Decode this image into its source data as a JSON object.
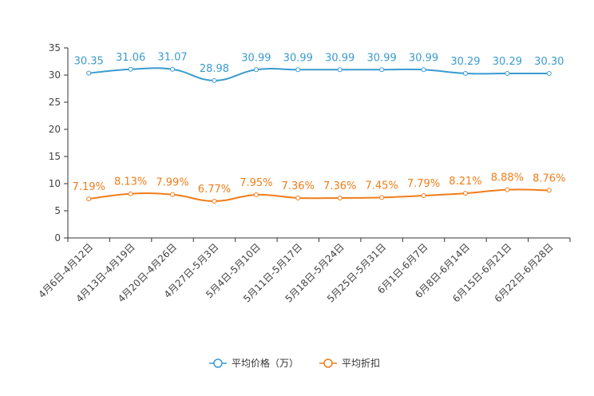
{
  "chart_data": {
    "type": "line",
    "categories": [
      "4月6日-4月12日",
      "4月13日-4月19日",
      "4月20日-4月26日",
      "4月27日-5月3日",
      "5月4日-5月10日",
      "5月11日-5月17日",
      "5月18日-5月24日",
      "5月25日-5月31日",
      "6月1日-6月7日",
      "6月8日-6月14日",
      "6月15日-6月21日",
      "6月22日-6月28日"
    ],
    "ylim": [
      0,
      35
    ],
    "yticks": [
      0,
      5,
      10,
      15,
      20,
      25,
      30,
      35
    ],
    "series": [
      {
        "name": "平均价格（万）",
        "color": "#3a9bd0",
        "values": [
          30.35,
          31.06,
          31.07,
          28.98,
          30.99,
          30.99,
          30.99,
          30.99,
          30.99,
          30.29,
          30.29,
          30.3
        ],
        "labels": [
          "30.35",
          "31.06",
          "31.07",
          "28.98",
          "30.99",
          "30.99",
          "30.99",
          "30.99",
          "30.99",
          "30.29",
          "30.29",
          "30.30"
        ]
      },
      {
        "name": "平均折扣",
        "color": "#f07d1a",
        "values": [
          7.19,
          8.13,
          7.99,
          6.77,
          7.95,
          7.36,
          7.36,
          7.45,
          7.79,
          8.21,
          8.88,
          8.76
        ],
        "labels": [
          "7.19%",
          "8.13%",
          "7.99%",
          "6.77%",
          "7.95%",
          "7.36%",
          "7.36%",
          "7.45%",
          "7.79%",
          "8.21%",
          "8.88%",
          "8.76%"
        ]
      }
    ],
    "legend_position": "bottom-center"
  }
}
